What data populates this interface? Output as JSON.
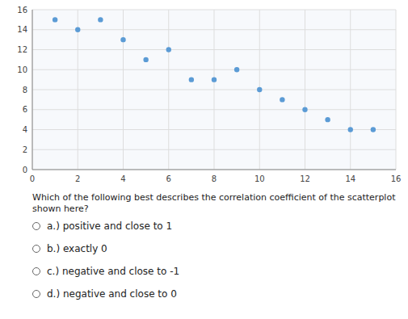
{
  "chart_data": {
    "type": "scatter",
    "x": [
      1,
      2,
      3,
      4,
      5,
      6,
      7,
      8,
      9,
      10,
      11,
      12,
      13,
      14,
      15
    ],
    "values": [
      15,
      14,
      15,
      13,
      11,
      12,
      9,
      9,
      10,
      8,
      7,
      6,
      5,
      4,
      4
    ],
    "color": "#5b9bd5",
    "xlim": [
      0,
      16
    ],
    "ylim": [
      0,
      16
    ],
    "xticks": [
      0,
      2,
      4,
      6,
      8,
      10,
      12,
      14,
      16
    ],
    "yticks": [
      0,
      2,
      4,
      6,
      8,
      10,
      12,
      14,
      16
    ],
    "grid": true,
    "annotations": [
      "Which of the following best describes the correlation coefficient of the scatterplot shown here?",
      "a.) positive and close to 1",
      "b.) exactly 0",
      "c.) negative and close to -1",
      "d.) negative and close to 0"
    ]
  }
}
